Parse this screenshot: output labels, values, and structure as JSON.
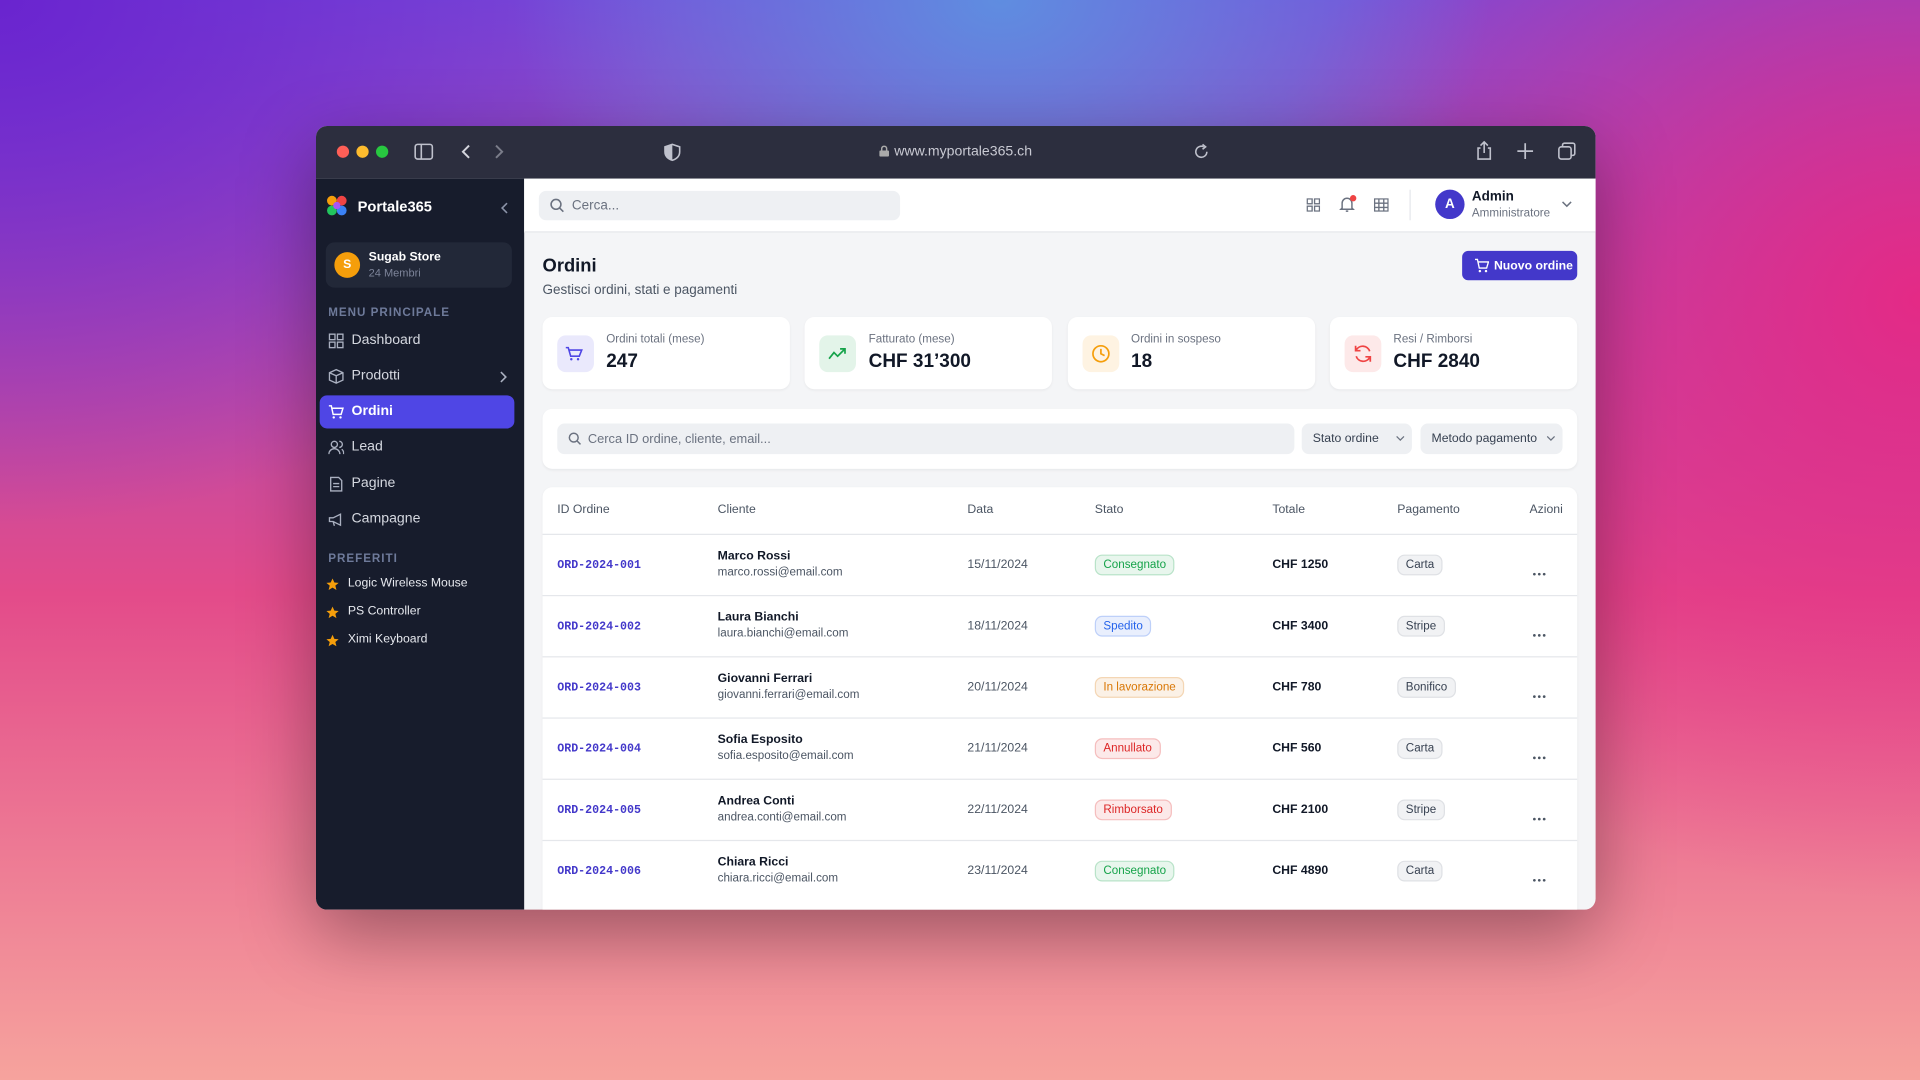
{
  "browser": {
    "url": "www.myportale365.ch"
  },
  "sidebar": {
    "brand": "Portale365",
    "workspace": {
      "avatar": "S",
      "name": "Sugab Store",
      "members": "24 Membri"
    },
    "menu_title": "MENU PRINCIPALE",
    "menu": [
      "Dashboard",
      "Prodotti",
      "Ordini",
      "Lead",
      "Pagine",
      "Campagne"
    ],
    "favorites_title": "PREFERITI",
    "favorites": [
      "Logic Wireless Mouse",
      "PS Controller",
      "Ximi Keyboard"
    ]
  },
  "topbar": {
    "search": "Cerca...",
    "avatar": "A",
    "user": "Admin",
    "role": "Amministratore"
  },
  "header": {
    "title": "Ordini",
    "subtitle": "Gestisci ordini, stati e pagamenti",
    "button": "Nuovo ordine"
  },
  "stats": [
    {
      "label": "Ordini totali (mese)",
      "value": "247",
      "color": "#4f46e5"
    },
    {
      "label": "Fatturato (mese)",
      "value": "CHF 31’300",
      "color": "#16a34a"
    },
    {
      "label": "Ordini in sospeso",
      "value": "18",
      "color": "#f59e0b"
    },
    {
      "label": "Resi / Rimborsi",
      "value": "CHF 2840",
      "color": "#ef4444"
    }
  ],
  "filters": {
    "search": "Cerca ID ordine, cliente, email...",
    "status": "Stato ordine",
    "payment": "Metodo pagamento"
  },
  "table": {
    "headers": [
      "ID Ordine",
      "Cliente",
      "Data",
      "Stato",
      "Totale",
      "Pagamento",
      "Azioni"
    ],
    "rows": [
      {
        "id": "ORD-2024-001",
        "name": "Marco Rossi",
        "email": "marco.rossi@email.com",
        "date": "15/11/2024",
        "status": "Consegnato",
        "status_color": "#16a34a",
        "total": "CHF 1250",
        "payment": "Carta"
      },
      {
        "id": "ORD-2024-002",
        "name": "Laura Bianchi",
        "email": "laura.bianchi@email.com",
        "date": "18/11/2024",
        "status": "Spedito",
        "status_color": "#2563eb",
        "total": "CHF 3400",
        "payment": "Stripe"
      },
      {
        "id": "ORD-2024-003",
        "name": "Giovanni Ferrari",
        "email": "giovanni.ferrari@email.com",
        "date": "20/11/2024",
        "status": "In lavorazione",
        "status_color": "#d97706",
        "total": "CHF 780",
        "payment": "Bonifico"
      },
      {
        "id": "ORD-2024-004",
        "name": "Sofia Esposito",
        "email": "sofia.esposito@email.com",
        "date": "21/11/2024",
        "status": "Annullato",
        "status_color": "#dc2626",
        "total": "CHF 560",
        "payment": "Carta"
      },
      {
        "id": "ORD-2024-005",
        "name": "Andrea Conti",
        "email": "andrea.conti@email.com",
        "date": "22/11/2024",
        "status": "Rimborsato",
        "status_color": "#dc2626",
        "total": "CHF 2100",
        "payment": "Stripe"
      },
      {
        "id": "ORD-2024-006",
        "name": "Chiara Ricci",
        "email": "chiara.ricci@email.com",
        "date": "23/11/2024",
        "status": "Consegnato",
        "status_color": "#16a34a",
        "total": "CHF 4890",
        "payment": "Carta"
      }
    ]
  }
}
